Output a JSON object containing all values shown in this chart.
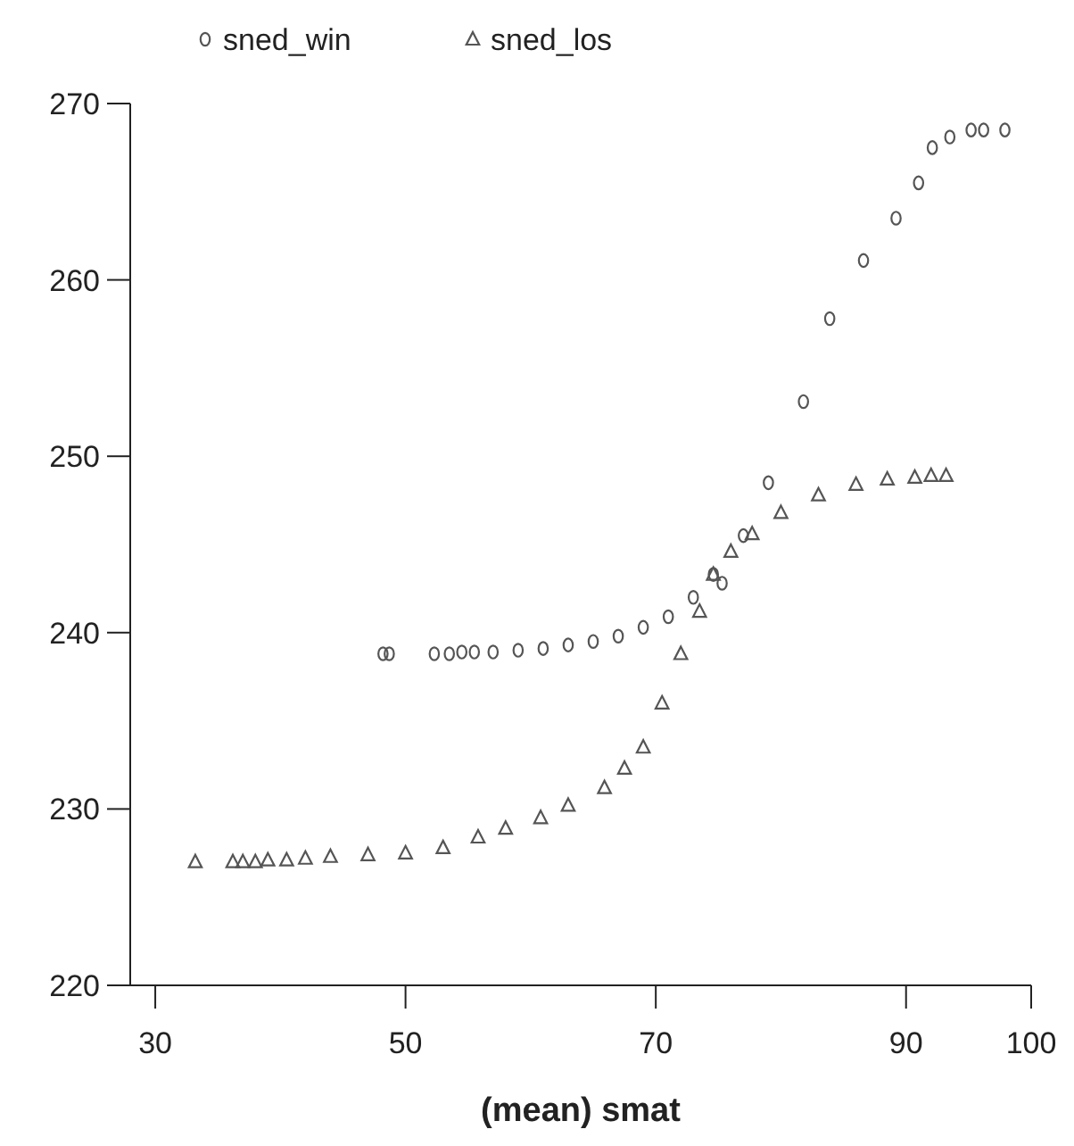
{
  "chart_data": {
    "type": "scatter",
    "xlabel": "(mean) smat",
    "xlim": [
      28,
      100
    ],
    "xticks": [
      30,
      50,
      70,
      90,
      100
    ],
    "ylim": [
      220,
      270
    ],
    "yticks": [
      220,
      230,
      240,
      250,
      260,
      270
    ],
    "legend": "top",
    "grid": false,
    "series": [
      {
        "name": "sned_win",
        "color": "#555555",
        "marker": "circle",
        "x": [
          48.2,
          48.7,
          52.3,
          53.5,
          54.5,
          55.5,
          57,
          59,
          61,
          63,
          65,
          67,
          69,
          71,
          73,
          74.6,
          75.3,
          77,
          79,
          81.8,
          83.9,
          86.6,
          89.2,
          91,
          92.1,
          93.5,
          95.2,
          96.2,
          97.9
        ],
        "values": [
          238.8,
          238.8,
          238.8,
          238.8,
          238.9,
          238.9,
          238.9,
          239,
          239.1,
          239.3,
          239.5,
          239.8,
          240.3,
          240.9,
          242,
          243.3,
          242.8,
          245.5,
          248.5,
          253.1,
          257.8,
          261.1,
          263.5,
          265.5,
          267.5,
          268.1,
          268.5,
          268.5,
          268.5
        ]
      },
      {
        "name": "sned_los",
        "color": "#555555",
        "marker": "triangle",
        "x": [
          33.2,
          36.2,
          37,
          38,
          39,
          40.5,
          42,
          44,
          47,
          50,
          53,
          55.8,
          58,
          60.8,
          63,
          65.9,
          67.5,
          69,
          70.5,
          72,
          73.5,
          74.6,
          76,
          77.7,
          80,
          83,
          86,
          88.5,
          90.7,
          92,
          93.2
        ],
        "values": [
          227,
          227,
          227,
          227,
          227.1,
          227.1,
          227.2,
          227.3,
          227.4,
          227.5,
          227.8,
          228.4,
          228.9,
          229.5,
          230.2,
          231.2,
          232.3,
          233.5,
          236,
          238.8,
          241.2,
          243.3,
          244.6,
          245.6,
          246.8,
          247.8,
          248.4,
          248.7,
          248.8,
          248.9,
          248.9
        ]
      }
    ]
  }
}
